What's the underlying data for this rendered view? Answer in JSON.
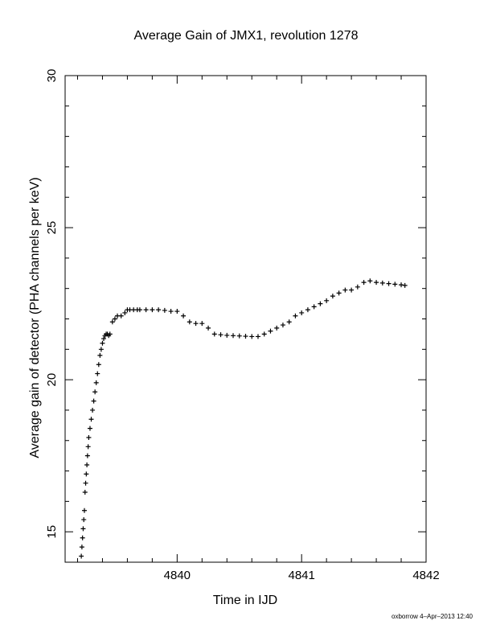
{
  "chart_data": {
    "type": "scatter",
    "title": "Average Gain of JMX1, revolution 1278",
    "xlabel": "Time in IJD",
    "ylabel": "Average gain of detector (PHA channels per keV)",
    "xlim": [
      4839.1,
      4842.0
    ],
    "ylim": [
      14.0,
      30.0
    ],
    "xticks": [
      4840,
      4841,
      4842
    ],
    "yticks": [
      15,
      20,
      25,
      30
    ],
    "marker": "plus",
    "grid": false,
    "series": [
      {
        "x": [
          4839.23,
          4839.235,
          4839.24,
          4839.245,
          4839.25,
          4839.255,
          4839.26,
          4839.265,
          4839.27,
          4839.275,
          4839.28,
          4839.285,
          4839.29,
          4839.3,
          4839.31,
          4839.32,
          4839.33,
          4839.34,
          4839.35,
          4839.36,
          4839.37,
          4839.38,
          4839.39,
          4839.4,
          4839.41,
          4839.42,
          4839.43,
          4839.44,
          4839.45,
          4839.46,
          4839.48,
          4839.5,
          4839.52,
          4839.55,
          4839.58,
          4839.6,
          4839.62,
          4839.65,
          4839.68,
          4839.7,
          4839.75,
          4839.8,
          4839.85,
          4839.9,
          4839.95,
          4840.0,
          4840.05,
          4840.1,
          4840.15,
          4840.2,
          4840.25,
          4840.3,
          4840.35,
          4840.4,
          4840.45,
          4840.5,
          4840.55,
          4840.6,
          4840.65,
          4840.7,
          4840.75,
          4840.8,
          4840.85,
          4840.9,
          4840.95,
          4841.0,
          4841.05,
          4841.1,
          4841.15,
          4841.2,
          4841.25,
          4841.3,
          4841.35,
          4841.4,
          4841.45,
          4841.5,
          4841.55,
          4841.6,
          4841.65,
          4841.7,
          4841.75,
          4841.8,
          4841.83
        ],
        "y": [
          14.2,
          14.5,
          14.8,
          15.1,
          15.4,
          15.7,
          16.3,
          16.6,
          16.9,
          17.2,
          17.5,
          17.8,
          18.1,
          18.4,
          18.7,
          19.0,
          19.3,
          19.6,
          19.9,
          20.2,
          20.5,
          20.8,
          21.0,
          21.2,
          21.35,
          21.45,
          21.5,
          21.5,
          21.45,
          21.5,
          21.9,
          22.0,
          22.1,
          22.1,
          22.2,
          22.3,
          22.3,
          22.3,
          22.3,
          22.3,
          22.3,
          22.3,
          22.3,
          22.28,
          22.25,
          22.25,
          22.1,
          21.9,
          21.85,
          21.85,
          21.7,
          21.5,
          21.48,
          21.46,
          21.45,
          21.44,
          21.43,
          21.42,
          21.42,
          21.5,
          21.6,
          21.7,
          21.8,
          21.9,
          22.1,
          22.2,
          22.3,
          22.4,
          22.5,
          22.6,
          22.75,
          22.85,
          22.95,
          22.95,
          23.05,
          23.2,
          23.25,
          23.2,
          23.18,
          23.16,
          23.14,
          23.12,
          23.1
        ]
      }
    ]
  },
  "footer": {
    "credit": "oxborrow  4–Apr–2013 12:40"
  }
}
